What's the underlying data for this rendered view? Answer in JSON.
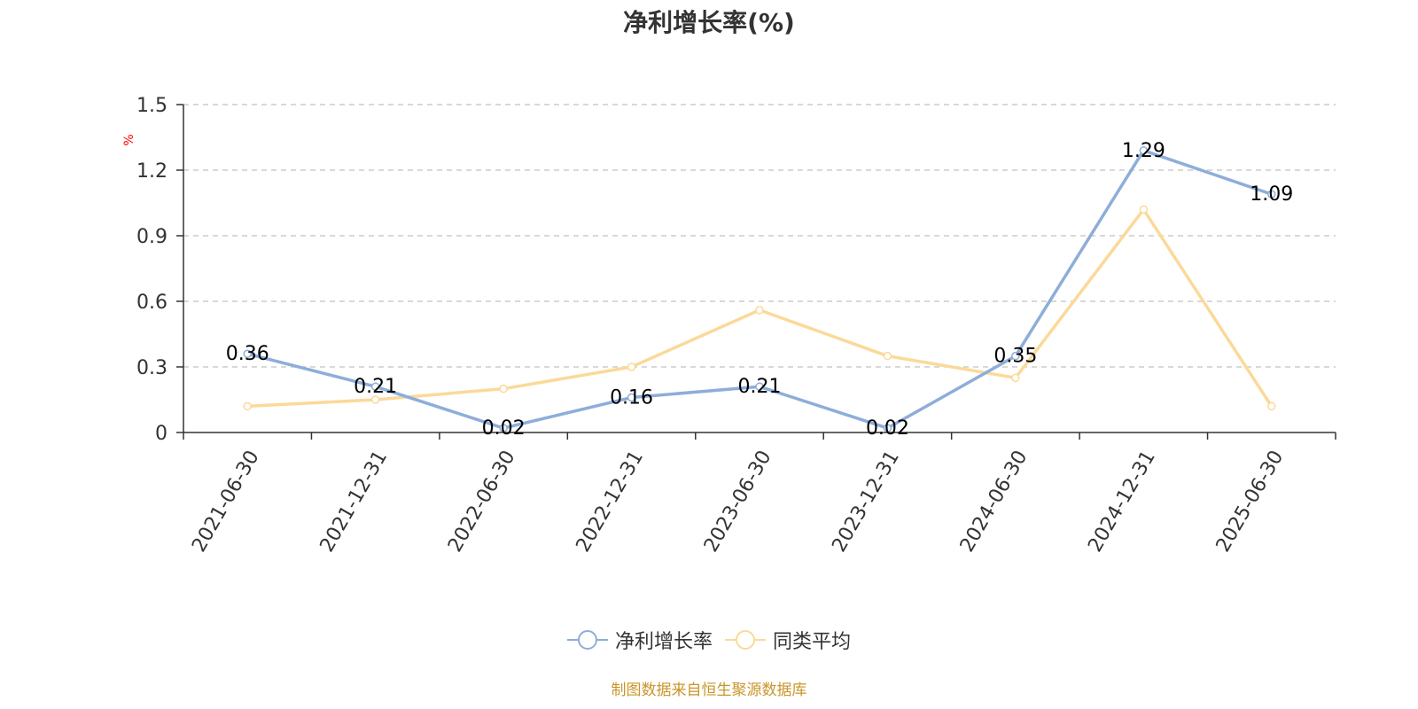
{
  "chart_data": {
    "type": "line",
    "title": "净利增长率(%)",
    "ylabel": "%",
    "xlabel": "",
    "categories": [
      "2021-06-30",
      "2021-12-31",
      "2022-06-30",
      "2022-12-31",
      "2023-06-30",
      "2023-12-31",
      "2024-06-30",
      "2024-12-31",
      "2025-06-30"
    ],
    "ylim": [
      0,
      1.5
    ],
    "yticks": [
      "0",
      "0.3",
      "0.6",
      "0.9",
      "1.2",
      "1.5"
    ],
    "grid": true,
    "legend_position": "bottom",
    "series": [
      {
        "name": "净利增长率",
        "color": "#8eadd9",
        "values": [
          0.36,
          0.21,
          0.02,
          0.16,
          0.21,
          0.02,
          0.35,
          1.29,
          1.09
        ],
        "labels": [
          "0.36",
          "0.21",
          "0.02",
          "0.16",
          "0.21",
          "0.02",
          "0.35",
          "1.29",
          "1.09"
        ]
      },
      {
        "name": "同类平均",
        "color": "#fbd999",
        "values": [
          0.12,
          0.15,
          0.2,
          0.3,
          0.56,
          0.35,
          0.25,
          1.02,
          0.12
        ]
      }
    ],
    "source": "制图数据来自恒生聚源数据库"
  }
}
